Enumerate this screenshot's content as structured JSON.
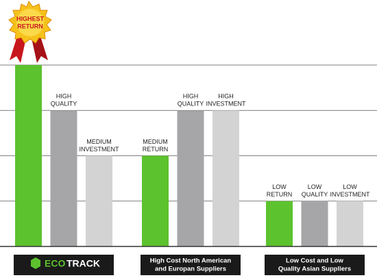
{
  "badge": [
    "HIGHEST",
    "RETURN"
  ],
  "chart_data": {
    "type": "grouped-bar",
    "categories": [
      [
        "ECO",
        "TRACK"
      ],
      [
        "High Cost North American",
        "and Europan Suppliers"
      ],
      [
        "Low Cost and Low",
        "Quality Asian Suppliers"
      ]
    ],
    "series": [
      {
        "color": "#5cc22e",
        "values": [
          4,
          2,
          1
        ],
        "labels": [
          null,
          [
            "MEDIUM",
            "RETURN"
          ],
          [
            "LOW",
            "RETURN"
          ]
        ]
      },
      {
        "color": "#a6a6a8",
        "values": [
          3,
          3,
          1
        ],
        "labels": [
          [
            "HIGH",
            "QUALITY"
          ],
          [
            "HIGH",
            "QUALITY"
          ],
          [
            "LOW",
            "QUALITY"
          ]
        ]
      },
      {
        "color": "#d3d3d3",
        "values": [
          2,
          3,
          1
        ],
        "labels": [
          [
            "MEDIUM",
            "INVESTMENT"
          ],
          [
            "HIGH",
            "INVESTMENT"
          ],
          [
            "LOW",
            "INVESTMENT"
          ]
        ]
      }
    ],
    "ylim": [
      0,
      4
    ],
    "yticks": [
      1,
      2,
      3,
      4
    ],
    "grid": true
  }
}
